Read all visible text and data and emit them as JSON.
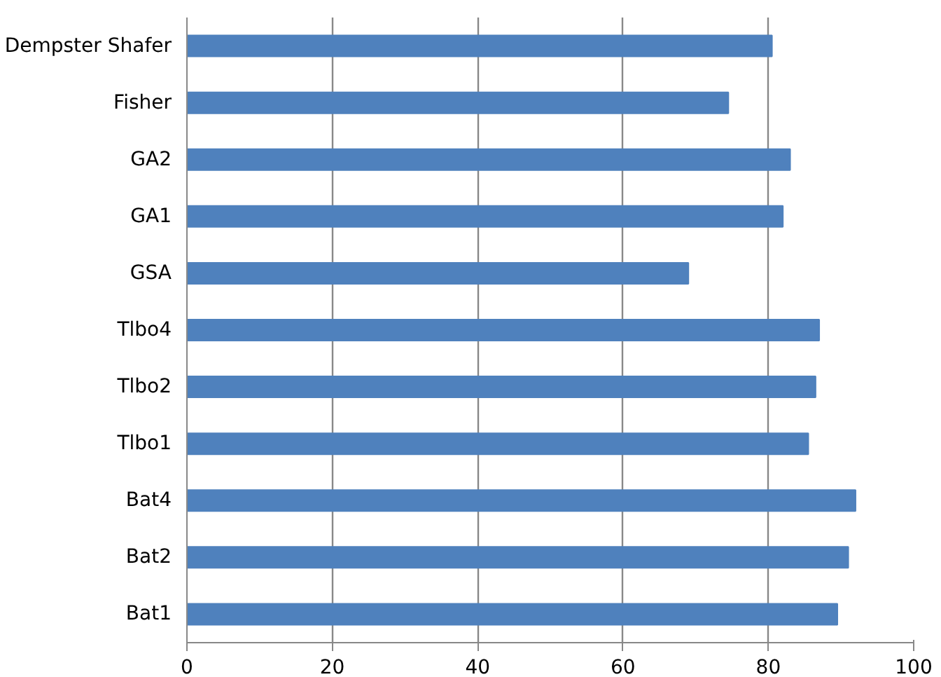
{
  "chart_data": {
    "type": "bar",
    "orientation": "horizontal",
    "categories": [
      "Dempster Shafer",
      "Fisher",
      "GA2",
      "GA1",
      "GSA",
      "Tlbo4",
      "Tlbo2",
      "Tlbo1",
      "Bat4",
      "Bat2",
      "Bat1"
    ],
    "values": [
      80.5,
      74.5,
      83,
      82,
      69,
      87,
      86.5,
      85.5,
      92,
      91,
      89.5
    ],
    "color": "#4f81bd",
    "xlim": [
      0,
      100
    ],
    "xticks": [
      0,
      20,
      40,
      60,
      80,
      100
    ],
    "grid": "x"
  }
}
